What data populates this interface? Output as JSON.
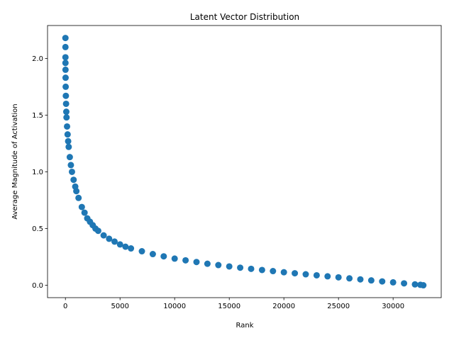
{
  "chart_data": {
    "type": "scatter",
    "title": "Latent Vector Distribution",
    "x_label": "Rank",
    "y_label": "Average Magnitude of Activation",
    "x": [
      0,
      1,
      2,
      4,
      8,
      15,
      25,
      40,
      60,
      80,
      100,
      150,
      200,
      250,
      300,
      400,
      500,
      600,
      750,
      900,
      1000,
      1200,
      1500,
      1750,
      2000,
      2250,
      2500,
      2750,
      3000,
      3500,
      4000,
      4500,
      5000,
      5500,
      6000,
      7000,
      8000,
      9000,
      10000,
      11000,
      12000,
      13000,
      14000,
      15000,
      16000,
      17000,
      18000,
      19000,
      20000,
      21000,
      22000,
      23000,
      24000,
      25000,
      26000,
      27000,
      28000,
      29000,
      30000,
      31000,
      32000,
      32500,
      32767
    ],
    "values": [
      2.18,
      2.1,
      2.01,
      1.96,
      1.9,
      1.83,
      1.75,
      1.67,
      1.6,
      1.53,
      1.48,
      1.4,
      1.33,
      1.27,
      1.22,
      1.13,
      1.06,
      1.0,
      0.93,
      0.87,
      0.83,
      0.77,
      0.69,
      0.64,
      0.59,
      0.56,
      0.53,
      0.5,
      0.48,
      0.44,
      0.41,
      0.385,
      0.36,
      0.34,
      0.325,
      0.3,
      0.275,
      0.255,
      0.235,
      0.22,
      0.205,
      0.19,
      0.178,
      0.166,
      0.155,
      0.145,
      0.135,
      0.125,
      0.115,
      0.106,
      0.097,
      0.088,
      0.079,
      0.07,
      0.061,
      0.052,
      0.043,
      0.034,
      0.026,
      0.017,
      0.008,
      0.004,
      0.0
    ],
    "color": "#1f77b4",
    "xlim": [
      -1638,
      34405
    ],
    "ylim": [
      -0.109,
      2.29
    ],
    "xticks": [
      0,
      5000,
      10000,
      15000,
      20000,
      25000,
      30000
    ],
    "yticks": [
      {
        "value": 0,
        "label": "0.0"
      },
      {
        "value": 0.5,
        "label": "0.5"
      },
      {
        "value": 1,
        "label": "1.0"
      },
      {
        "value": 1.5,
        "label": "1.5"
      },
      {
        "value": 2,
        "label": "2.0"
      }
    ]
  }
}
